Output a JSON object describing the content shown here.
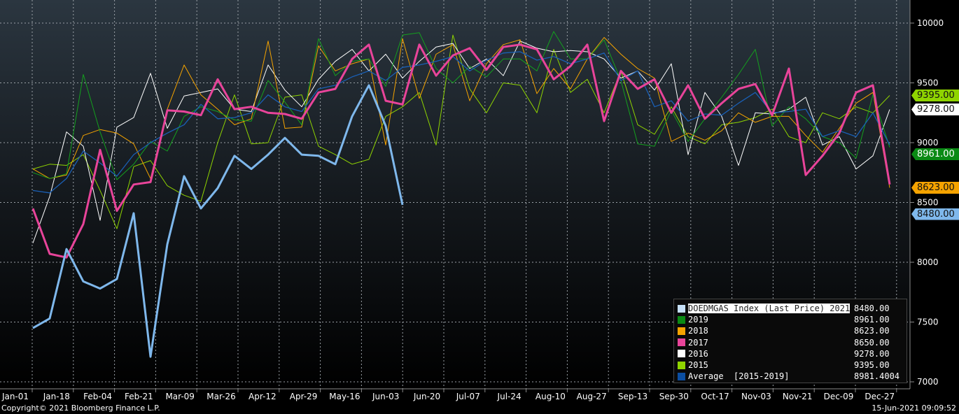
{
  "chart_data": {
    "type": "line",
    "title": "",
    "xlabel": "",
    "ylabel": "",
    "ylim": [
      7000,
      10000
    ],
    "yticks": [
      7000,
      7500,
      8000,
      8500,
      9000,
      9500,
      10000
    ],
    "ytick_labels": [
      "7000",
      "7500",
      "8000",
      "8500",
      "9000",
      "9500",
      "10000"
    ],
    "xtick_labels": [
      "Jan-01",
      "Jan-18",
      "Feb-04",
      "Feb-21",
      "Mar-09",
      "Mar-26",
      "Apr-12",
      "Apr-29",
      "May-16",
      "Jun-03",
      "Jun-20",
      "Jul-07",
      "Jul-24",
      "Aug-10",
      "Aug-27",
      "Sep-13",
      "Sep-30",
      "Oct-17",
      "Nov-03",
      "Nov-21",
      "Dec-09",
      "Dec-27"
    ],
    "x_unit": "week of year",
    "grid": true,
    "legend_position": "bottom-right",
    "series": [
      {
        "name": "2015",
        "color": "#8fd400",
        "width": 1,
        "last": "9395.00",
        "values": [
          8780,
          8820,
          8810,
          8900,
          8600,
          8280,
          8800,
          8850,
          8640,
          8560,
          8510,
          9000,
          9400,
          8990,
          9000,
          9380,
          9400,
          8970,
          8900,
          8820,
          8860,
          9220,
          9300,
          9420,
          8980,
          9900,
          9450,
          9250,
          9500,
          9480,
          9250,
          9780,
          9420,
          9530,
          9250,
          9600,
          9150,
          9070,
          9300,
          9050,
          8990,
          9150,
          9170,
          9210,
          9280,
          9050,
          9000,
          9250,
          9200,
          9300,
          9250,
          9395
        ]
      },
      {
        "name": "2016",
        "color": "#ffffff",
        "width": 1,
        "last": "9278.00",
        "values": [
          8160,
          8550,
          9090,
          8970,
          8350,
          9130,
          9210,
          9580,
          9120,
          9390,
          9420,
          9450,
          9280,
          9260,
          9650,
          9440,
          9300,
          9530,
          9680,
          9780,
          9600,
          9740,
          9540,
          9680,
          9800,
          9830,
          9620,
          9700,
          9560,
          9850,
          9790,
          9760,
          9770,
          9760,
          9700,
          9540,
          9600,
          9440,
          9660,
          8900,
          9420,
          9220,
          8810,
          9250,
          9240,
          9280,
          9380,
          8980,
          9050,
          8780,
          8890,
          9278
        ]
      },
      {
        "name": "2018",
        "color": "#f5a300",
        "width": 1,
        "last": "8623.00",
        "values": [
          8780,
          8700,
          8730,
          9060,
          9110,
          9080,
          8990,
          8700,
          9280,
          9650,
          9400,
          9280,
          9150,
          9200,
          9850,
          9120,
          9130,
          9810,
          9600,
          9660,
          9700,
          8980,
          9870,
          9370,
          9740,
          9820,
          9350,
          9660,
          9820,
          9860,
          9410,
          9620,
          9450,
          9700,
          9880,
          9740,
          9620,
          9540,
          9010,
          9080,
          9020,
          9100,
          9250,
          9170,
          9220,
          9220,
          9060,
          8920,
          9120,
          9330,
          9420,
          8623
        ]
      },
      {
        "name": "2019",
        "color": "#14a01e",
        "width": 1,
        "last": "8961.00",
        "values": [
          8750,
          8700,
          8740,
          9570,
          9090,
          8690,
          8820,
          9010,
          8930,
          9220,
          9300,
          9260,
          9190,
          9180,
          9520,
          9340,
          9150,
          9870,
          9560,
          9680,
          9700,
          9470,
          9900,
          9920,
          9620,
          9500,
          9640,
          9550,
          9700,
          9700,
          9600,
          9930,
          9700,
          9700,
          9860,
          9520,
          8990,
          8970,
          9270,
          9010,
          9200,
          9380,
          9570,
          9780,
          9140,
          9300,
          9200,
          9050,
          9000,
          8870,
          9400,
          8961
        ]
      },
      {
        "name": "Average  [2015-2019]",
        "color": "#1a5fb4",
        "width": 1.3,
        "last": "8981.4004",
        "values": [
          8600,
          8580,
          8700,
          8930,
          8830,
          8720,
          8900,
          9000,
          9080,
          9150,
          9320,
          9200,
          9210,
          9250,
          9400,
          9300,
          9260,
          9450,
          9480,
          9550,
          9600,
          9520,
          9630,
          9650,
          9680,
          9720,
          9600,
          9690,
          9750,
          9760,
          9690,
          9720,
          9660,
          9700,
          9750,
          9520,
          9600,
          9300,
          9350,
          9180,
          9240,
          9230,
          9330,
          9420,
          9250,
          9260,
          9280,
          9050,
          9100,
          9050,
          9250,
          8981
        ]
      },
      {
        "name": "2017",
        "color": "#e8449a",
        "width": 3,
        "last": "8650.00",
        "values": [
          8450,
          8070,
          8040,
          8320,
          8940,
          8430,
          8650,
          8670,
          9270,
          9260,
          9230,
          9530,
          9280,
          9300,
          9250,
          9240,
          9200,
          9420,
          9450,
          9700,
          9820,
          9350,
          9320,
          9820,
          9560,
          9730,
          9790,
          9610,
          9800,
          9820,
          9780,
          9530,
          9640,
          9820,
          9180,
          9600,
          9450,
          9530,
          9250,
          9480,
          9200,
          9330,
          9450,
          9490,
          9230,
          9620,
          8730,
          8890,
          9080,
          9420,
          9480,
          8650
        ]
      },
      {
        "name": "DOEDMGAS Index (Last Price) 2021",
        "color": "#7fb8ec",
        "width": 3,
        "last": "8480.00",
        "values": [
          7450,
          7530,
          8110,
          7840,
          7780,
          7860,
          8410,
          7210,
          8150,
          8720,
          8450,
          8620,
          8890,
          8780,
          8900,
          9040,
          8900,
          8890,
          8820,
          9220,
          9480,
          9140,
          8480
        ]
      }
    ]
  },
  "legend": {
    "items": [
      {
        "label": "DOEDMGAS Index (Last Price) 2021",
        "value": "8480.00",
        "color": "#c6e0f8"
      },
      {
        "label": "2019",
        "value": "8961.00",
        "color": "#0a8a14"
      },
      {
        "label": "2018",
        "value": "8623.00",
        "color": "#f5a300"
      },
      {
        "label": "2017",
        "value": "8650.00",
        "color": "#e8449a"
      },
      {
        "label": "2016",
        "value": "9278.00",
        "color": "#ffffff"
      },
      {
        "label": "2015",
        "value": "9395.00",
        "color": "#8fd400"
      },
      {
        "label": "Average  [2015-2019]",
        "value": "8981.4004",
        "color": "#0b4ea2"
      }
    ]
  },
  "axis_tags": [
    {
      "value": 9395,
      "text": "9395.00",
      "bg": "#8fd400",
      "fg": "#111"
    },
    {
      "value": 9278,
      "text": "9278.00",
      "bg": "#ffffff",
      "fg": "#111"
    },
    {
      "value": 8961,
      "text": "8961.00",
      "bg": "#0a8a14",
      "fg": "#fff"
    },
    {
      "value": 8623,
      "text": "8623.00",
      "bg": "#f5a300",
      "fg": "#111"
    },
    {
      "value": 8480,
      "text": "8480.00",
      "bg": "#7fb8ec",
      "fg": "#111"
    }
  ],
  "footer": {
    "copyright": "Copyright© 2021 Bloomberg Finance L.P.",
    "timestamp": "15-Jun-2021 09:09:52"
  }
}
